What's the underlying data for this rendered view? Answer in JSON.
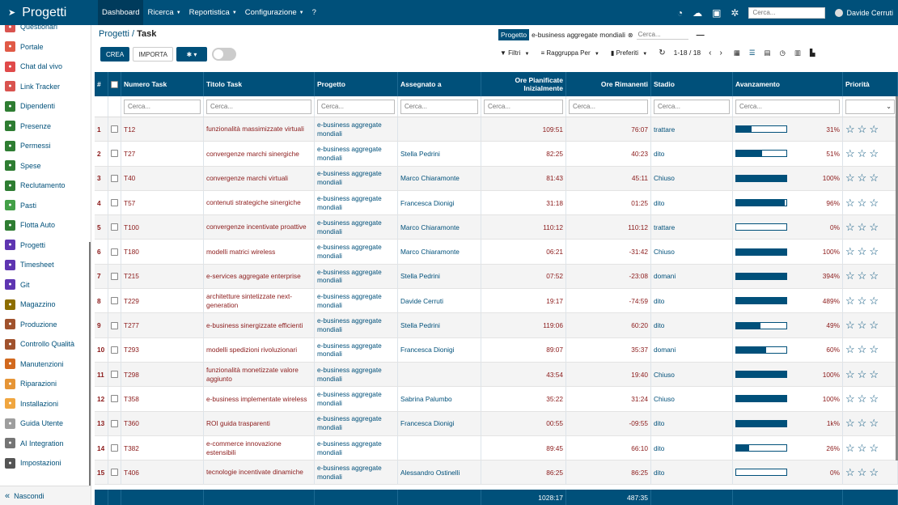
{
  "app": {
    "title": "Progetti",
    "logo_icon": "rocket-icon"
  },
  "topnav": [
    {
      "label": "Dashboard",
      "caret": false,
      "active": true
    },
    {
      "label": "Ricerca",
      "caret": true
    },
    {
      "label": "Reportistica",
      "caret": true
    },
    {
      "label": "Configurazione",
      "caret": true
    },
    {
      "label": "?",
      "caret": false
    }
  ],
  "topbar": {
    "search_placeholder": "Cerca...",
    "user_name": "Davide Cerruti"
  },
  "sidebar": {
    "items": [
      {
        "label": "Questionari",
        "color": "#d9534f",
        "icon": "clipboard-icon"
      },
      {
        "label": "Portale",
        "color": "#e05a47",
        "icon": "globe-icon"
      },
      {
        "label": "Chat dal vivo",
        "color": "#e04a4a",
        "icon": "chat-icon"
      },
      {
        "label": "Link Tracker",
        "color": "#d9534f",
        "icon": "link-icon"
      },
      {
        "label": "Dipendenti",
        "color": "#2e7d32",
        "icon": "users-icon"
      },
      {
        "label": "Presenze",
        "color": "#2e7d32",
        "icon": "user-check-icon"
      },
      {
        "label": "Permessi",
        "color": "#2e7d32",
        "icon": "calendar-icon"
      },
      {
        "label": "Spese",
        "color": "#2e7d32",
        "icon": "dollar-icon"
      },
      {
        "label": "Reclutamento",
        "color": "#2e7d32",
        "icon": "search-person-icon"
      },
      {
        "label": "Pasti",
        "color": "#43a047",
        "icon": "fork-icon"
      },
      {
        "label": "Flotta Auto",
        "color": "#2e7d32",
        "icon": "car-icon"
      },
      {
        "label": "Progetti",
        "color": "#5e35b1",
        "icon": "puzzle-icon"
      },
      {
        "label": "Timesheet",
        "color": "#5e35b1",
        "icon": "clock-icon"
      },
      {
        "label": "Git",
        "color": "#5e35b1",
        "icon": "git-icon"
      },
      {
        "label": "Magazzino",
        "color": "#8d6e00",
        "icon": "box-icon"
      },
      {
        "label": "Produzione",
        "color": "#a0522d",
        "icon": "wrench-icon"
      },
      {
        "label": "Controllo Qualità",
        "color": "#a0522d",
        "icon": "quality-icon"
      },
      {
        "label": "Manutenzioni",
        "color": "#d2691e",
        "icon": "hammer-icon"
      },
      {
        "label": "Riparazioni",
        "color": "#e69536",
        "icon": "tools-icon"
      },
      {
        "label": "Installazioni",
        "color": "#f0a640",
        "icon": "install-icon"
      },
      {
        "label": "Guida Utente",
        "color": "#9e9e9e",
        "icon": "book-icon"
      },
      {
        "label": "AI Integration",
        "color": "#757575",
        "icon": "ai-icon"
      },
      {
        "label": "Impostazioni",
        "color": "#555555",
        "icon": "settings-icon"
      }
    ],
    "hide_label": "Nascondi"
  },
  "breadcrumb": {
    "parent": "Progetti",
    "separator": "/",
    "current": "Task"
  },
  "facet": {
    "label": "Progetto",
    "value": "e-business aggregate mondiali",
    "search_placeholder": "Cerca..."
  },
  "actions": {
    "create": "CREA",
    "import": "IMPORTA"
  },
  "controls": {
    "filters": "Filtri",
    "group": "Raggruppa Per",
    "favorites": "Preferiti",
    "pager": "1-18 / 18"
  },
  "table": {
    "columns": [
      "#",
      "",
      "Numero Task",
      "Titolo Task",
      "Progetto",
      "Assegnato a",
      "Ore Pianificate Inizialmente",
      "Ore Rimanenti",
      "Stadio",
      "Avanzamento",
      "Priorità"
    ],
    "filter_placeholder": "Cerca...",
    "rows": [
      {
        "n": "1",
        "task": "T12",
        "title": "funzionalità massimizzate virtuali",
        "project": "e-business aggregate mondiali",
        "assignee": "",
        "planned": "109:51",
        "remaining": "76:07",
        "stage": "trattare",
        "progress": 31,
        "progress_label": "31%"
      },
      {
        "n": "2",
        "task": "T27",
        "title": "convergenze marchi sinergiche",
        "project": "e-business aggregate mondiali",
        "assignee": "Stella Pedrini",
        "planned": "82:25",
        "remaining": "40:23",
        "stage": "dito",
        "progress": 51,
        "progress_label": "51%"
      },
      {
        "n": "3",
        "task": "T40",
        "title": "convergenze marchi virtuali",
        "project": "e-business aggregate mondiali",
        "assignee": "Marco Chiaramonte",
        "planned": "81:43",
        "remaining": "45:11",
        "stage": "Chiuso",
        "progress": 100,
        "progress_label": "100%"
      },
      {
        "n": "4",
        "task": "T57",
        "title": "contenuti strategiche sinergiche",
        "project": "e-business aggregate mondiali",
        "assignee": "Francesca Dionigi",
        "planned": "31:18",
        "remaining": "01:25",
        "stage": "dito",
        "progress": 96,
        "progress_label": "96%"
      },
      {
        "n": "5",
        "task": "T100",
        "title": "convergenze incentivate proattive",
        "project": "e-business aggregate mondiali",
        "assignee": "Marco Chiaramonte",
        "planned": "110:12",
        "remaining": "110:12",
        "stage": "trattare",
        "progress": 0,
        "progress_label": "0%"
      },
      {
        "n": "6",
        "task": "T180",
        "title": "modelli matrici wireless",
        "project": "e-business aggregate mondiali",
        "assignee": "Marco Chiaramonte",
        "planned": "06:21",
        "remaining": "-31:42",
        "stage": "Chiuso",
        "progress": 100,
        "progress_label": "100%"
      },
      {
        "n": "7",
        "task": "T215",
        "title": "e-services aggregate enterprise",
        "project": "e-business aggregate mondiali",
        "assignee": "Stella Pedrini",
        "planned": "07:52",
        "remaining": "-23:08",
        "stage": "domani",
        "progress": 394,
        "progress_label": "394%"
      },
      {
        "n": "8",
        "task": "T229",
        "title": "architetture sintetizzate next-generation",
        "project": "e-business aggregate mondiali",
        "assignee": "Davide Cerruti",
        "planned": "19:17",
        "remaining": "-74:59",
        "stage": "dito",
        "progress": 489,
        "progress_label": "489%"
      },
      {
        "n": "9",
        "task": "T277",
        "title": "e-business sinergizzate efficienti",
        "project": "e-business aggregate mondiali",
        "assignee": "Stella Pedrini",
        "planned": "119:06",
        "remaining": "60:20",
        "stage": "dito",
        "progress": 49,
        "progress_label": "49%"
      },
      {
        "n": "10",
        "task": "T293",
        "title": "modelli spedizioni rivoluzionari",
        "project": "e-business aggregate mondiali",
        "assignee": "Francesca Dionigi",
        "planned": "89:07",
        "remaining": "35:37",
        "stage": "domani",
        "progress": 60,
        "progress_label": "60%"
      },
      {
        "n": "11",
        "task": "T298",
        "title": "funzionalità monetizzate valore aggiunto",
        "project": "e-business aggregate mondiali",
        "assignee": "",
        "planned": "43:54",
        "remaining": "19:40",
        "stage": "Chiuso",
        "progress": 100,
        "progress_label": "100%"
      },
      {
        "n": "12",
        "task": "T358",
        "title": "e-business implementate wireless",
        "project": "e-business aggregate mondiali",
        "assignee": "Sabrina Palumbo",
        "planned": "35:22",
        "remaining": "31:24",
        "stage": "Chiuso",
        "progress": 100,
        "progress_label": "100%"
      },
      {
        "n": "13",
        "task": "T360",
        "title": "ROI guida trasparenti",
        "project": "e-business aggregate mondiali",
        "assignee": "Francesca Dionigi",
        "planned": "00:55",
        "remaining": "-09:55",
        "stage": "dito",
        "progress": 1000,
        "progress_label": "1k%"
      },
      {
        "n": "14",
        "task": "T382",
        "title": "e-commerce innovazione estensibili",
        "project": "e-business aggregate mondiali",
        "assignee": "",
        "planned": "89:45",
        "remaining": "66:10",
        "stage": "dito",
        "progress": 26,
        "progress_label": "26%"
      },
      {
        "n": "15",
        "task": "T406",
        "title": "tecnologie incentivate dinamiche",
        "project": "e-business aggregate mondiali",
        "assignee": "Alessandro Ostinelli",
        "planned": "86:25",
        "remaining": "86:25",
        "stage": "dito",
        "progress": 0,
        "progress_label": "0%"
      }
    ],
    "totals": {
      "planned": "1028:17",
      "remaining": "487:35"
    }
  },
  "colors": {
    "primary": "#00507a",
    "link_red": "#8b1a1a"
  }
}
